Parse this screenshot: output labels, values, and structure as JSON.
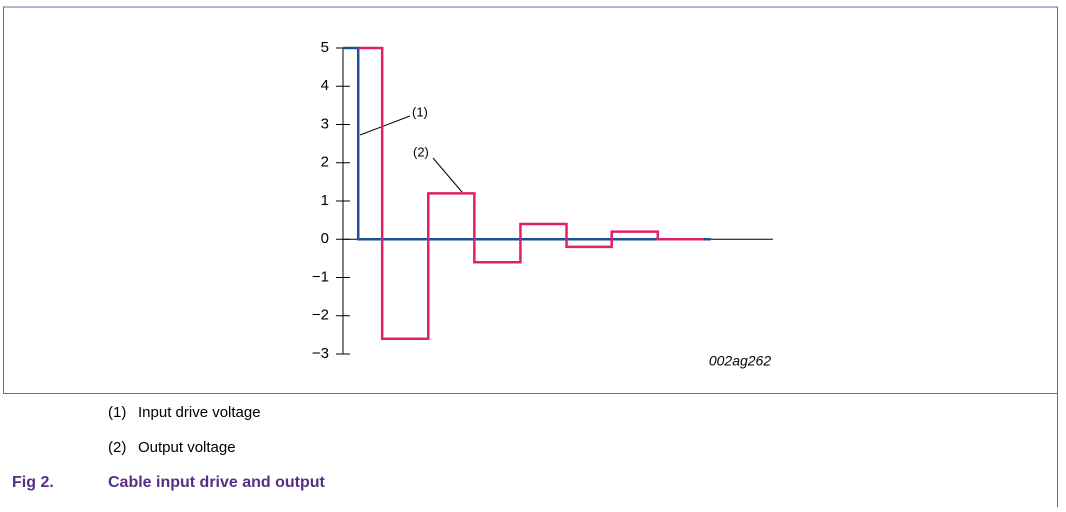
{
  "chart_data": {
    "type": "step",
    "xlim": [
      -0.33,
      9
    ],
    "ylim": [
      -3,
      5
    ],
    "yticks": [
      {
        "value": -3,
        "label": "−3"
      },
      {
        "value": -2,
        "label": "−2"
      },
      {
        "value": -1,
        "label": "−1"
      },
      0,
      1,
      2,
      3,
      4,
      5
    ],
    "series": [
      {
        "name": "Input drive voltage",
        "label": "(1)",
        "color": "#1f4e9a",
        "x": [
          -0.33,
          0,
          7.65
        ],
        "values": [
          5,
          0,
          0
        ]
      },
      {
        "name": "Output voltage",
        "label": "(2)",
        "color": "#e0206a",
        "x": [
          0,
          0.52,
          1.52,
          2.52,
          3.52,
          4.52,
          5.5,
          6.5,
          7.5
        ],
        "values": [
          5,
          -2.6,
          1.2,
          -0.6,
          0.4,
          -0.2,
          0.2,
          0,
          0
        ]
      }
    ],
    "figure_id": "002ag262"
  },
  "caption": {
    "number": "Fig 2.",
    "title": "Cable input drive and output"
  }
}
